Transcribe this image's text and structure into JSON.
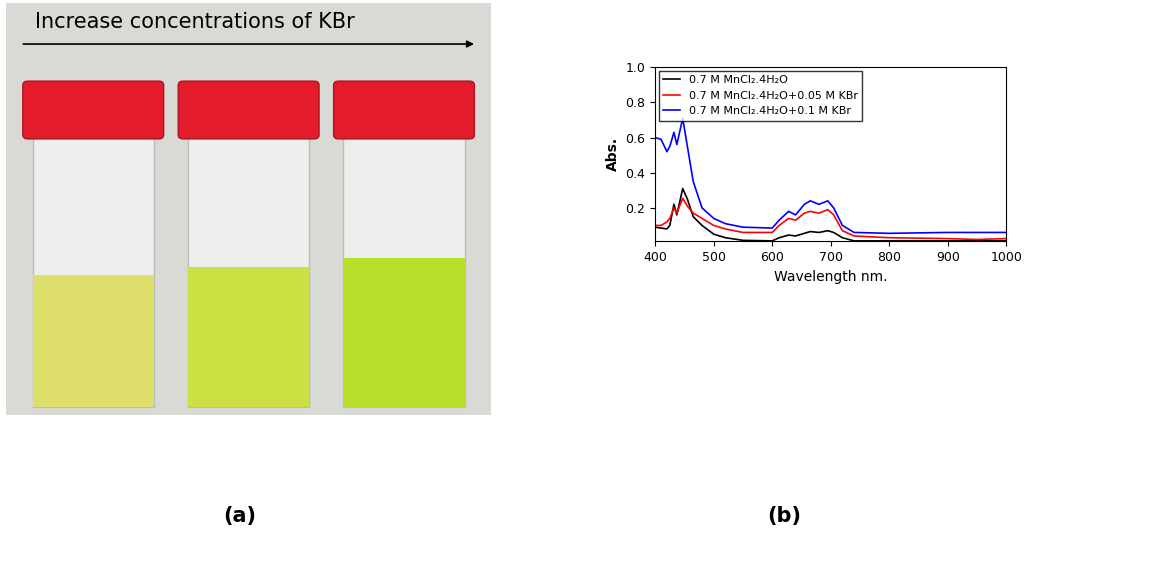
{
  "photo": {
    "label": "(a)",
    "caption": "Increase concentrations of KBr"
  },
  "chart_data": {
    "type": "line",
    "annotations": [
      "(b)"
    ],
    "x_label": "Wavelength nm.",
    "y_label": "Abs.",
    "x": [
      400,
      410,
      420,
      425,
      432,
      437,
      447,
      455,
      465,
      480,
      500,
      520,
      550,
      600,
      612,
      628,
      640,
      655,
      665,
      680,
      695,
      705,
      720,
      740,
      800,
      900,
      950,
      1000
    ],
    "series": [
      {
        "name": "0.7 M MnCl₂.4H₂O",
        "color": "#000000",
        "values": [
          0.09,
          0.085,
          0.08,
          0.1,
          0.22,
          0.16,
          0.31,
          0.25,
          0.15,
          0.1,
          0.05,
          0.03,
          0.015,
          0.012,
          0.03,
          0.045,
          0.04,
          0.055,
          0.065,
          0.06,
          0.07,
          0.06,
          0.03,
          0.012,
          0.012,
          0.012,
          0.012,
          0.012
        ]
      },
      {
        "name": "0.7 M MnCl₂.4H₂O+0.05 M KBr",
        "color": "#ff0000",
        "values": [
          0.1,
          0.1,
          0.12,
          0.14,
          0.2,
          0.17,
          0.255,
          0.21,
          0.17,
          0.14,
          0.1,
          0.08,
          0.06,
          0.06,
          0.1,
          0.14,
          0.13,
          0.17,
          0.18,
          0.17,
          0.19,
          0.16,
          0.07,
          0.04,
          0.03,
          0.025,
          0.02,
          0.025
        ]
      },
      {
        "name": "0.7 M MnCl₂.4H₂O+0.1 M KBr",
        "color": "#0000ff",
        "values": [
          0.6,
          0.59,
          0.52,
          0.55,
          0.63,
          0.56,
          0.71,
          0.55,
          0.35,
          0.2,
          0.14,
          0.11,
          0.09,
          0.085,
          0.13,
          0.18,
          0.16,
          0.22,
          0.24,
          0.22,
          0.24,
          0.2,
          0.1,
          0.06,
          0.055,
          0.06,
          0.06,
          0.06
        ]
      }
    ],
    "xlim": [
      400,
      1000
    ],
    "xticks": [
      400,
      500,
      600,
      700,
      800,
      900,
      1000
    ],
    "ylim": [
      0.01,
      1.0
    ],
    "yticks": [
      0.2,
      0.4,
      0.6,
      0.8,
      1.0
    ],
    "grid": false,
    "legend": "upper left"
  }
}
